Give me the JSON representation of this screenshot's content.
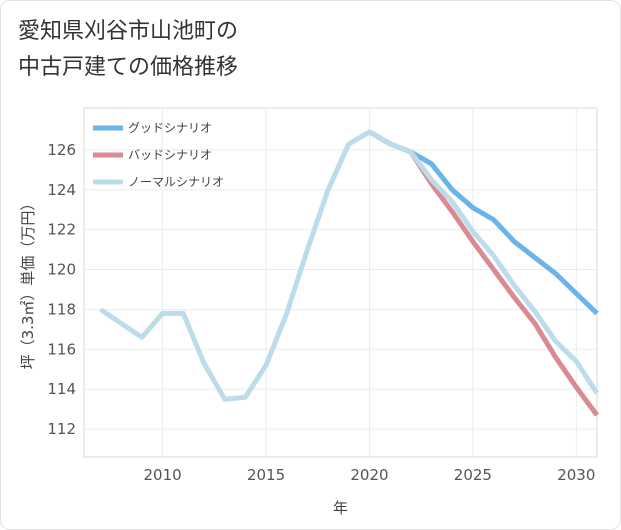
{
  "title": {
    "line1": "愛知県刈谷市山池町の",
    "line2": "中古戸建ての価格推移"
  },
  "chart_data": {
    "type": "line",
    "x": [
      2007,
      2008,
      2009,
      2010,
      2011,
      2012,
      2013,
      2014,
      2015,
      2016,
      2017,
      2018,
      2019,
      2020,
      2021,
      2022,
      2023,
      2024,
      2025,
      2026,
      2027,
      2028,
      2029,
      2030,
      2031
    ],
    "series": [
      {
        "name": "グッドシナリオ",
        "color": "#6ab4ea",
        "values": [
          null,
          null,
          null,
          null,
          null,
          null,
          null,
          null,
          null,
          null,
          null,
          null,
          null,
          126.9,
          126.3,
          125.9,
          125.3,
          124.0,
          123.1,
          122.5,
          121.4,
          120.6,
          119.8,
          118.8,
          117.8
        ]
      },
      {
        "name": "バッドシナリオ",
        "color": "#d98a92",
        "values": [
          null,
          null,
          null,
          null,
          null,
          null,
          null,
          null,
          null,
          null,
          null,
          null,
          null,
          126.9,
          126.3,
          125.9,
          124.3,
          122.9,
          121.4,
          120.0,
          118.6,
          117.3,
          115.6,
          114.1,
          112.7
        ]
      },
      {
        "name": "ノーマルシナリオ",
        "color": "#bcdcea",
        "values": [
          118.0,
          117.3,
          116.6,
          117.8,
          117.8,
          115.3,
          113.5,
          113.6,
          115.2,
          117.8,
          121.0,
          124.0,
          126.3,
          126.9,
          126.3,
          125.9,
          124.5,
          123.4,
          121.9,
          120.7,
          119.2,
          117.9,
          116.4,
          115.4,
          113.8
        ]
      }
    ],
    "xlim": [
      2006.2,
      2031
    ],
    "ylim": [
      110.6,
      128.1
    ],
    "xticks": [
      2010,
      2015,
      2020,
      2025,
      2030
    ],
    "yticks": [
      112,
      114,
      116,
      118,
      120,
      122,
      124,
      126
    ],
    "xlabel": "年",
    "ylabel": "坪（3.3㎡）単価（万円）",
    "grid": true,
    "legend": "top-left"
  }
}
